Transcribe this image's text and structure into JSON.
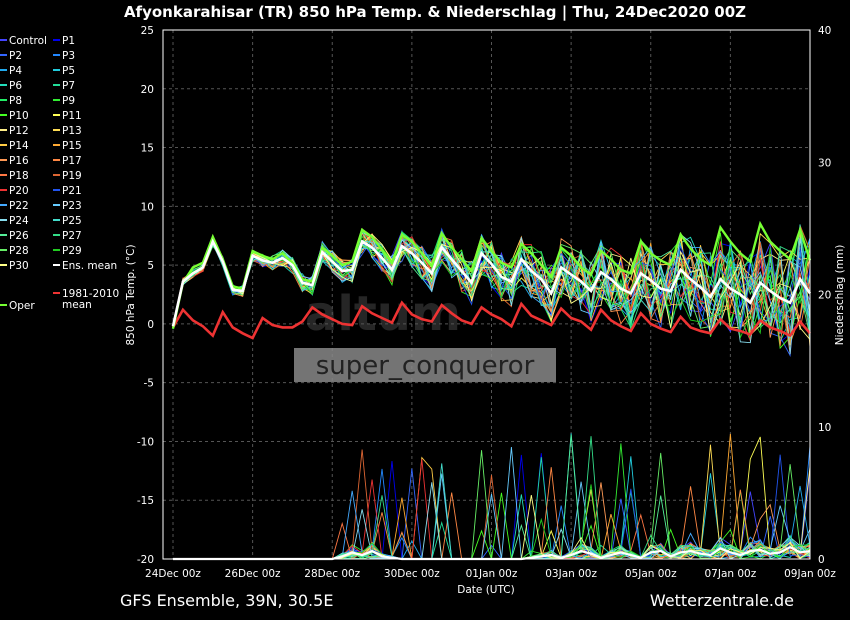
{
  "title": "Afyonkarahisar  (TR)  850 hPa Temp. & Niederschlag | Thu, 24Dec2020 00Z",
  "footer_left": "GFS Ensemble, 39N, 30.5E",
  "footer_right": "Wetterzentrale.de",
  "watermark_user": "super_conqueror",
  "chart_data": {
    "type": "line",
    "ylabel": "850 hPa Temp. (°C)",
    "y2label": "Niederschlag (mm)",
    "xlabel": "Date (UTC)",
    "ylim": [
      -20,
      25
    ],
    "y2lim": [
      0,
      40
    ],
    "yticks": [
      25,
      20,
      15,
      10,
      5,
      0,
      -5,
      -10,
      -15,
      -20
    ],
    "y2ticks": [
      40,
      30,
      20,
      10,
      0
    ],
    "xticks": [
      "24Dec 00z",
      "26Dec 00z",
      "28Dec 00z",
      "30Dec 00z",
      "01Jan 00z",
      "03Jan 00z",
      "05Jan 00z",
      "07Jan 00z",
      "09Jan 00z"
    ],
    "x_hours": [
      0,
      384
    ],
    "grid": true,
    "legend": [
      {
        "name": "Control",
        "color": "#4444ff"
      },
      {
        "name": "P1",
        "color": "#0000ee"
      },
      {
        "name": "P2",
        "color": "#3366ff"
      },
      {
        "name": "P3",
        "color": "#2288ff"
      },
      {
        "name": "P4",
        "color": "#22aaee"
      },
      {
        "name": "P5",
        "color": "#22ccdd"
      },
      {
        "name": "P6",
        "color": "#22ddbb"
      },
      {
        "name": "P7",
        "color": "#22dd99"
      },
      {
        "name": "P8",
        "color": "#22ee66"
      },
      {
        "name": "P9",
        "color": "#33ee33"
      },
      {
        "name": "P10",
        "color": "#44ff22"
      },
      {
        "name": "P11",
        "color": "#ffff55"
      },
      {
        "name": "P12",
        "color": "#ffee88"
      },
      {
        "name": "P13",
        "color": "#ffdd55"
      },
      {
        "name": "P14",
        "color": "#ffcc44"
      },
      {
        "name": "P15",
        "color": "#ffaa33"
      },
      {
        "name": "P16",
        "color": "#ff9955"
      },
      {
        "name": "P17",
        "color": "#ff8844"
      },
      {
        "name": "P18",
        "color": "#ff7744"
      },
      {
        "name": "P19",
        "color": "#dd6633"
      },
      {
        "name": "P20",
        "color": "#ee3333"
      },
      {
        "name": "P21",
        "color": "#2255ee"
      },
      {
        "name": "P22",
        "color": "#44aaff"
      },
      {
        "name": "P23",
        "color": "#66ccff"
      },
      {
        "name": "P24",
        "color": "#88ddee"
      },
      {
        "name": "P25",
        "color": "#44ddcc"
      },
      {
        "name": "P26",
        "color": "#55ee99"
      },
      {
        "name": "P27",
        "color": "#33dd88"
      },
      {
        "name": "P28",
        "color": "#66ee66"
      },
      {
        "name": "P29",
        "color": "#22cc22"
      },
      {
        "name": "P30",
        "color": "#ffff88"
      },
      {
        "name": "Ens. mean",
        "color": "#ffffff"
      },
      {
        "name": "Oper",
        "color": "#77ff33"
      },
      {
        "name": "1981-2010\nmean",
        "color": "#ee3333"
      }
    ],
    "ens_mean": [
      -0.2,
      3.6,
      4.3,
      4.8,
      7.0,
      5.3,
      2.9,
      2.8,
      5.8,
      5.4,
      5.2,
      5.6,
      5.0,
      3.5,
      3.3,
      6.1,
      5.3,
      4.5,
      4.6,
      7.0,
      6.5,
      5.6,
      4.6,
      6.6,
      6.0,
      5.2,
      4.3,
      6.5,
      5.5,
      4.5,
      3.5,
      6.0,
      5.1,
      4.0,
      3.6,
      5.5,
      4.5,
      3.8,
      2.6,
      4.8,
      4.2,
      3.6,
      2.8,
      4.4,
      3.8,
      3.0,
      2.6,
      4.3,
      3.7,
      3.0,
      2.8,
      4.6,
      3.8,
      3.1,
      2.3,
      3.8,
      3.0,
      2.5,
      1.8,
      3.5,
      2.8,
      2.2,
      1.8,
      3.8,
      2.6
    ],
    "oper": [
      -0.4,
      3.5,
      4.8,
      5.2,
      7.4,
      5.5,
      3.2,
      3.0,
      6.2,
      5.8,
      5.5,
      6.0,
      5.2,
      3.8,
      3.6,
      6.5,
      5.8,
      5.0,
      5.3,
      8.0,
      7.4,
      6.3,
      5.2,
      7.6,
      7.0,
      6.0,
      4.9,
      7.7,
      6.5,
      5.5,
      4.5,
      7.3,
      6.2,
      5.2,
      4.8,
      6.8,
      6.0,
      5.0,
      4.0,
      6.5,
      5.8,
      4.8,
      4.2,
      6.2,
      5.5,
      4.6,
      4.3,
      7.0,
      6.0,
      5.4,
      5.0,
      7.6,
      6.4,
      5.5,
      5.0,
      8.2,
      7.0,
      6.0,
      5.3,
      8.5,
      7.0,
      6.2,
      5.5,
      8.0,
      5.4
    ],
    "climate_mean": [
      -0.3,
      1.2,
      0.3,
      -0.2,
      -1.0,
      1.0,
      -0.3,
      -0.8,
      -1.2,
      0.5,
      -0.1,
      -0.3,
      -0.3,
      0.2,
      1.4,
      0.8,
      0.4,
      0.0,
      -0.1,
      1.5,
      0.9,
      0.5,
      0.1,
      1.8,
      0.8,
      0.4,
      0.2,
      1.6,
      0.9,
      0.3,
      0.0,
      1.4,
      0.8,
      0.4,
      -0.2,
      1.7,
      0.7,
      0.3,
      -0.1,
      1.3,
      0.5,
      0.2,
      -0.5,
      1.2,
      0.3,
      -0.2,
      -0.6,
      0.9,
      0.0,
      -0.4,
      -0.7,
      0.6,
      -0.3,
      -0.6,
      -0.8,
      0.4,
      -0.4,
      -0.6,
      -0.9,
      0.3,
      -0.3,
      -0.6,
      -1.0,
      0.2,
      -0.8
    ],
    "precip_mean": [
      0,
      0,
      0,
      0,
      0,
      0,
      0,
      0,
      0,
      0,
      0,
      0,
      0,
      0,
      0,
      0,
      0,
      0.2,
      0.5,
      0.3,
      0.6,
      0.2,
      0.1,
      0,
      0,
      0,
      0,
      0,
      0,
      0,
      0,
      0,
      0,
      0,
      0,
      0,
      0.1,
      0.2,
      0.3,
      0.1,
      0.3,
      0.6,
      0.4,
      0.1,
      0.3,
      0.5,
      0.3,
      0.1,
      0.5,
      0.6,
      0.2,
      0.5,
      0.6,
      0.4,
      0.3,
      0.8,
      0.5,
      0.3,
      0.6,
      0.7,
      0.4,
      0.5,
      0.9,
      0.5,
      0.6
    ]
  }
}
